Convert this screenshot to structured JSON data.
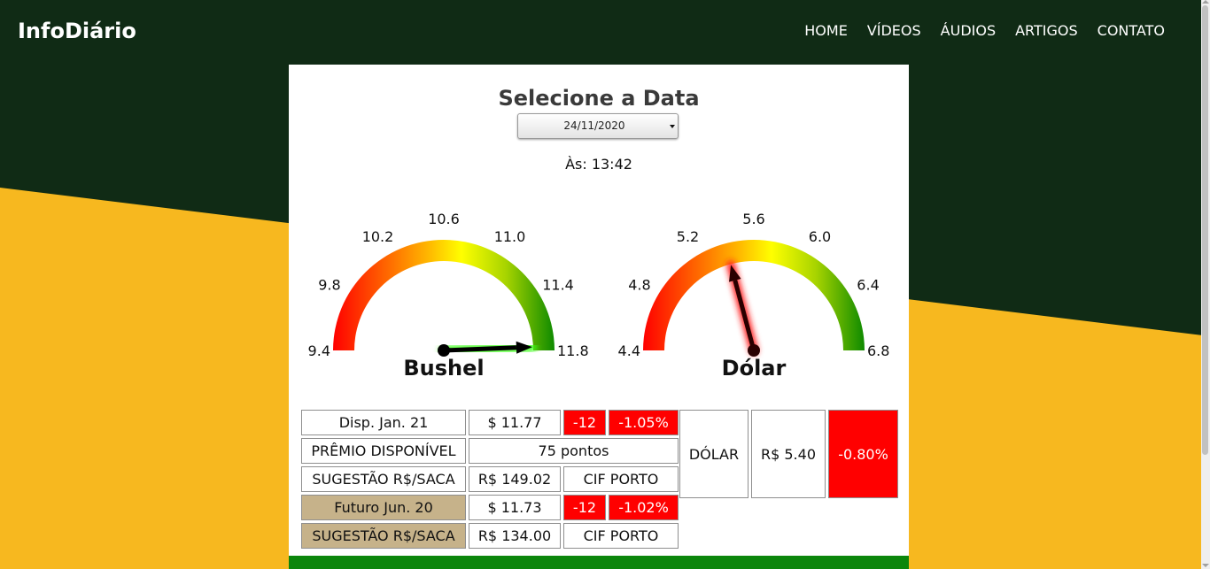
{
  "nav": {
    "brand": "InfoDiário",
    "items": [
      "HOME",
      "VÍDEOS",
      "ÁUDIOS",
      "ARTIGOS",
      "CONTATO"
    ]
  },
  "page": {
    "title": "Selecione a Data",
    "date": "24/11/2020",
    "time": "Às: 13:42"
  },
  "gauges": [
    {
      "name": "Bushel",
      "ticks": [
        "9.4",
        "9.8",
        "10.2",
        "10.6",
        "11.0",
        "11.4",
        "11.8"
      ],
      "min": 9.4,
      "max": 11.8,
      "value": 11.77,
      "needle_color": "#000000",
      "glow_color": "#39ff14"
    },
    {
      "name": "Dólar",
      "ticks": [
        "4.4",
        "4.8",
        "5.2",
        "5.6",
        "6.0",
        "6.4",
        "6.8"
      ],
      "min": 4.4,
      "max": 6.8,
      "value": 5.4,
      "needle_color": "#2a0000",
      "glow_color": "#ff2020"
    }
  ],
  "table": {
    "disp_label": "Disp. Jan. 21",
    "disp_price": "$ 11.77",
    "disp_change": "-12",
    "disp_pct": "-1.05%",
    "premio_label": "PRÊMIO DISPONÍVEL",
    "premio_value": "75 pontos",
    "sug1_label": "SUGESTÃO R$/SACA",
    "sug1_value": "R$ 149.02",
    "sug1_port": "CIF PORTO",
    "fut_label": "Futuro Jun. 20",
    "fut_price": "$ 11.73",
    "fut_change": "-12",
    "fut_pct": "-1.02%",
    "sug2_label": "SUGESTÃO R$/SACA",
    "sug2_value": "R$ 134.00",
    "sug2_port": "CIF PORTO"
  },
  "dolar_table": {
    "label": "DÓLAR",
    "value": "R$ 5.40",
    "pct": "-0.80%"
  },
  "colors": {
    "dark_green": "#102b15",
    "yellow": "#f7b81f",
    "footer_green": "#0c860c",
    "alert_red": "#ff0000",
    "tan": "#c6b28a"
  }
}
